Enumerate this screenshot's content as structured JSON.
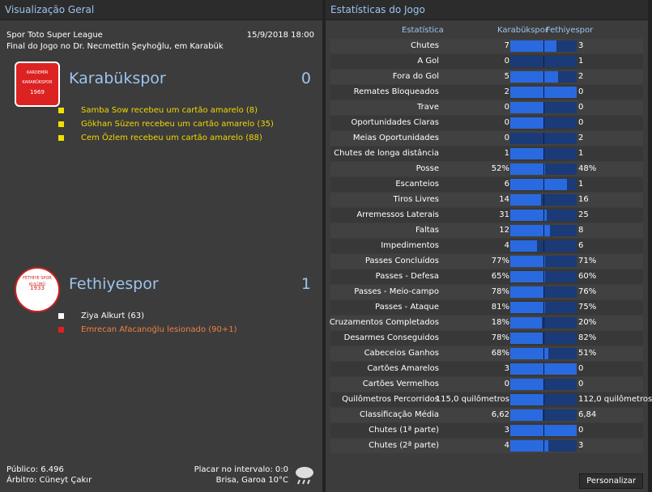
{
  "overview": {
    "title": "Visualização Geral",
    "competition": "Spor Toto Super League",
    "datetime": "15/9/2018 18:00",
    "venue": "Final do Jogo no Dr. Necmettin Şeyhoğlu, em Karabük",
    "teams": [
      {
        "name": "Karabükspor",
        "score": 0,
        "crest": [
          "KARDEMİR",
          "KARABÜKSPOR",
          "1969"
        ],
        "events": [
          {
            "text": "Samba Sow recebeu um cartão amarelo (8)",
            "color": "#f0d800",
            "icon": "#f0e000"
          },
          {
            "text": "Gökhan Süzen recebeu um cartão amarelo (35)",
            "color": "#f0d800",
            "icon": "#f0e000"
          },
          {
            "text": "Cem Özlem recebeu um cartão amarelo (88)",
            "color": "#f0d800",
            "icon": "#f0e000"
          }
        ]
      },
      {
        "name": "Fethiyespor",
        "score": 1,
        "crest": [
          "FETHİYE SPOR KULÜBÜ",
          "1933"
        ],
        "events": [
          {
            "text": "Ziya Alkurt (63)",
            "color": "#ffffff",
            "icon": "#ffffff"
          },
          {
            "text": "Emrecan Afacanoğlu lesionado (90+1)",
            "color": "#f08040",
            "icon": "#e02020"
          }
        ]
      }
    ],
    "attendance": "Público: 6.496",
    "referee": "Árbitro: Cüneyt Çakır",
    "halftime": "Placar no intervalo: 0:0",
    "weather": "Brisa, Garoa 10°C"
  },
  "stats": {
    "title": "Estatísticas do Jogo",
    "headers": [
      "Estatística",
      "Karabükspor",
      "Fethiyespor"
    ],
    "button": "Personalizar",
    "rows": [
      {
        "label": "Chutes",
        "home": 7,
        "away": 3
      },
      {
        "label": "A Gol",
        "home": 0,
        "away": 1
      },
      {
        "label": "Fora do Gol",
        "home": 5,
        "away": 2
      },
      {
        "label": "Remates Bloqueados",
        "home": 2,
        "away": 0
      },
      {
        "label": "Trave",
        "home": 0,
        "away": 0
      },
      {
        "label": "Oportunidades Claras",
        "home": 0,
        "away": 0
      },
      {
        "label": "Meias Oportunidades",
        "home": 0,
        "away": 2
      },
      {
        "label": "Chutes de longa distância",
        "home": 1,
        "away": 1
      },
      {
        "label": "Posse",
        "home": "52%",
        "away": "48%"
      },
      {
        "label": "Escanteios",
        "home": 6,
        "away": 1
      },
      {
        "label": "Tiros Livres",
        "home": 14,
        "away": 16
      },
      {
        "label": "Arremessos Laterais",
        "home": 31,
        "away": 25
      },
      {
        "label": "Faltas",
        "home": 12,
        "away": 8
      },
      {
        "label": "Impedimentos",
        "home": 4,
        "away": 6
      },
      {
        "label": "Passes Concluídos",
        "home": "77%",
        "away": "71%"
      },
      {
        "label": "Passes - Defesa",
        "home": "65%",
        "away": "60%"
      },
      {
        "label": "Passes - Meio-campo",
        "home": "78%",
        "away": "76%"
      },
      {
        "label": "Passes - Ataque",
        "home": "81%",
        "away": "75%"
      },
      {
        "label": "Cruzamentos Completados",
        "home": "18%",
        "away": "20%"
      },
      {
        "label": "Desarmes Conseguidos",
        "home": "78%",
        "away": "82%"
      },
      {
        "label": "Cabeceios Ganhos",
        "home": "68%",
        "away": "51%"
      },
      {
        "label": "Cartões Amarelos",
        "home": 3,
        "away": 0
      },
      {
        "label": "Cartões Vermelhos",
        "home": 0,
        "away": 0
      },
      {
        "label": "Quilômetros Percorridos",
        "home": "115,0 quilômetros",
        "away": "112,0 quilômetros"
      },
      {
        "label": "Classificação Média",
        "home": "6,62",
        "away": "6,84"
      },
      {
        "label": "Chutes (1ª parte)",
        "home": 3,
        "away": 0
      },
      {
        "label": "Chutes (2ª parte)",
        "home": 4,
        "away": 3
      }
    ]
  }
}
